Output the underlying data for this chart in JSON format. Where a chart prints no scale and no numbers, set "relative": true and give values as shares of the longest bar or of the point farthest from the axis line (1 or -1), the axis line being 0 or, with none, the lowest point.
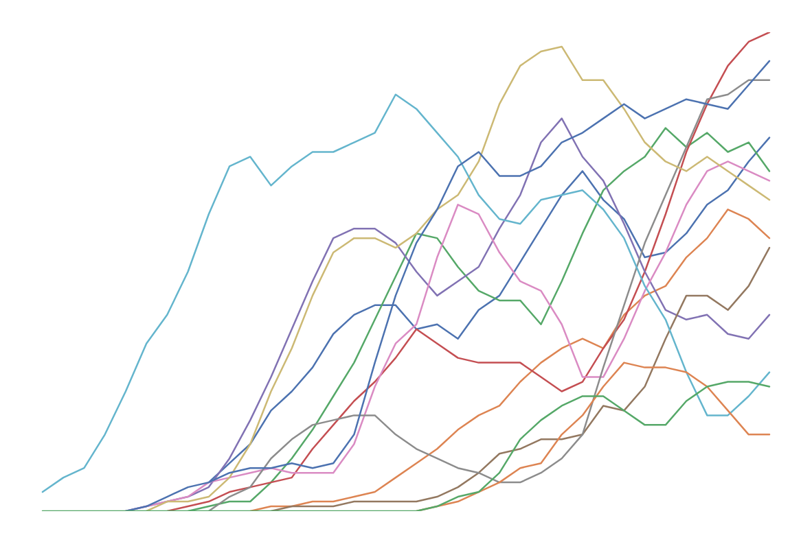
{
  "chart_data": {
    "type": "line",
    "relative": true,
    "categories": [
      null,
      null,
      null,
      null,
      null,
      null,
      null,
      null,
      null,
      null,
      null,
      null,
      null,
      null,
      null,
      null,
      null,
      null,
      null,
      null,
      null,
      null,
      null,
      null,
      null,
      null,
      null,
      null,
      null,
      null,
      null,
      null,
      null,
      null,
      null,
      null
    ],
    "series": [
      {
        "color": "#4c72b0",
        "values": [
          null,
          null,
          null,
          null,
          null,
          null,
          null,
          null,
          0.06,
          0.1,
          0.14,
          0.21,
          0.25,
          0.3,
          0.37,
          0.41,
          0.43,
          0.43,
          0.38,
          0.39,
          0.36,
          0.42,
          0.45,
          0.52,
          0.59,
          0.66,
          0.71,
          0.65,
          0.61,
          0.53,
          0.54,
          0.58,
          0.64,
          0.67,
          0.73,
          0.78
        ]
      },
      {
        "color": "#dd8452",
        "values": [
          null,
          null,
          null,
          null,
          null,
          null,
          null,
          null,
          null,
          null,
          0,
          0.01,
          0.01,
          0.02,
          0.02,
          0.03,
          0.04,
          0.07,
          0.1,
          0.13,
          0.17,
          0.2,
          0.22,
          0.27,
          0.31,
          0.34,
          0.36,
          0.34,
          0.41,
          0.45,
          0.47,
          0.53,
          0.57,
          0.63,
          0.61,
          0.57
        ]
      },
      {
        "color": "#55a868",
        "values": [
          null,
          null,
          null,
          null,
          null,
          null,
          null,
          0,
          0.01,
          0.02,
          0.02,
          0.06,
          0.11,
          0.17,
          0.24,
          0.31,
          0.4,
          0.49,
          0.58,
          0.57,
          0.51,
          0.46,
          0.44,
          0.44,
          0.39,
          0.48,
          0.58,
          0.67,
          0.71,
          0.74,
          0.8,
          0.76,
          0.79,
          0.75,
          0.77,
          0.71
        ]
      },
      {
        "color": "#c44e52",
        "values": [
          null,
          null,
          null,
          null,
          null,
          null,
          0,
          0.01,
          0.02,
          0.04,
          0.05,
          0.06,
          0.07,
          0.13,
          0.18,
          0.23,
          0.27,
          0.32,
          0.38,
          0.35,
          0.32,
          0.31,
          0.31,
          0.31,
          0.28,
          0.25,
          0.27,
          0.34,
          0.4,
          0.5,
          0.62,
          0.75,
          0.85,
          0.93,
          0.98,
          1
        ]
      },
      {
        "color": "#8172b3",
        "values": [
          null,
          null,
          null,
          null,
          0,
          0.01,
          0.02,
          0.03,
          0.05,
          0.11,
          0.19,
          0.28,
          0.38,
          0.48,
          0.57,
          0.59,
          0.59,
          0.56,
          0.5,
          0.45,
          0.48,
          0.51,
          0.59,
          0.66,
          0.77,
          0.82,
          0.74,
          0.69,
          0.6,
          0.5,
          0.42,
          0.4,
          0.41,
          0.37,
          0.36,
          0.41
        ]
      },
      {
        "color": "#937860",
        "values": [
          null,
          null,
          null,
          null,
          null,
          null,
          null,
          null,
          null,
          null,
          null,
          0,
          0.01,
          0.01,
          0.01,
          0.02,
          0.02,
          0.02,
          0.02,
          0.03,
          0.05,
          0.08,
          0.12,
          0.13,
          0.15,
          0.15,
          0.16,
          0.22,
          0.21,
          0.26,
          0.36,
          0.45,
          0.45,
          0.42,
          0.47,
          0.55
        ]
      },
      {
        "color": "#da8bc3",
        "values": [
          null,
          null,
          null,
          null,
          0,
          0.01,
          0.02,
          0.03,
          0.06,
          0.07,
          0.08,
          0.09,
          0.08,
          0.08,
          0.08,
          0.14,
          0.26,
          0.35,
          0.39,
          0.53,
          0.64,
          0.62,
          0.54,
          0.48,
          0.46,
          0.39,
          0.28,
          0.28,
          0.36,
          0.46,
          0.54,
          0.64,
          0.71,
          0.73,
          0.71,
          0.69
        ]
      },
      {
        "color": "#8c8c8c",
        "values": [
          null,
          null,
          null,
          null,
          null,
          null,
          null,
          null,
          0,
          0.03,
          0.05,
          0.11,
          0.15,
          0.18,
          0.19,
          0.2,
          0.2,
          0.16,
          0.13,
          0.11,
          0.09,
          0.08,
          0.06,
          0.06,
          0.08,
          0.11,
          0.16,
          0.3,
          0.43,
          0.56,
          0.66,
          0.76,
          0.86,
          0.87,
          0.9,
          0.9
        ]
      },
      {
        "color": "#ccb974",
        "values": [
          null,
          null,
          null,
          null,
          null,
          0,
          0.02,
          0.02,
          0.03,
          0.07,
          0.14,
          0.25,
          0.34,
          0.45,
          0.54,
          0.57,
          0.57,
          0.55,
          0.58,
          0.63,
          0.66,
          0.73,
          0.85,
          0.93,
          0.96,
          0.97,
          0.9,
          0.9,
          0.84,
          0.77,
          0.73,
          0.71,
          0.74,
          0.71,
          0.68,
          0.65
        ]
      },
      {
        "color": "#64b5cd",
        "values": [
          0.04,
          0.07,
          0.09,
          0.16,
          0.25,
          0.35,
          0.41,
          0.5,
          0.62,
          0.72,
          0.74,
          0.68,
          0.72,
          0.75,
          0.75,
          0.77,
          0.79,
          0.87,
          0.84,
          0.79,
          0.74,
          0.66,
          0.61,
          0.6,
          0.65,
          0.66,
          0.67,
          0.63,
          0.57,
          0.47,
          0.4,
          0.29,
          0.2,
          0.2,
          0.24,
          0.29
        ]
      },
      {
        "color": "#4c72b0",
        "values": [
          null,
          null,
          null,
          null,
          0,
          0.01,
          0.03,
          0.05,
          0.06,
          0.08,
          0.09,
          0.09,
          0.1,
          0.09,
          0.1,
          0.16,
          0.31,
          0.45,
          0.56,
          0.63,
          0.72,
          0.75,
          0.7,
          0.7,
          0.72,
          0.77,
          0.79,
          0.82,
          0.85,
          0.82,
          0.84,
          0.86,
          0.85,
          0.84,
          0.89,
          0.94
        ]
      },
      {
        "color": "#dd8452",
        "values": [
          null,
          null,
          null,
          null,
          null,
          null,
          null,
          null,
          null,
          null,
          null,
          null,
          null,
          null,
          null,
          null,
          null,
          null,
          0,
          0.01,
          0.02,
          0.04,
          0.06,
          0.09,
          0.1,
          0.16,
          0.2,
          0.26,
          0.31,
          0.3,
          0.3,
          0.29,
          0.26,
          0.21,
          0.16,
          0.16
        ]
      },
      {
        "color": "#55a868",
        "values": [
          0,
          0,
          0,
          0,
          0,
          0,
          0,
          0,
          0,
          0,
          0,
          0,
          0,
          0,
          0,
          0,
          0,
          0,
          0,
          0.01,
          0.03,
          0.04,
          0.08,
          0.15,
          0.19,
          0.22,
          0.24,
          0.24,
          0.21,
          0.18,
          0.18,
          0.23,
          0.26,
          0.27,
          0.27,
          0.26
        ]
      }
    ]
  }
}
